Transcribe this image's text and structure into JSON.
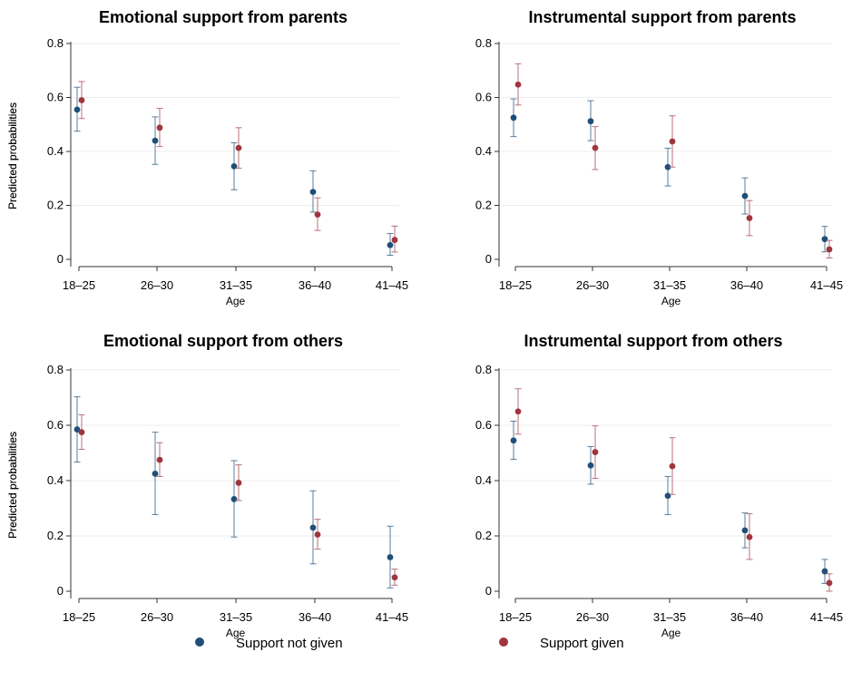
{
  "chart_data": [
    {
      "type": "scatter",
      "title": "Emotional support from parents",
      "xlabel": "Age",
      "ylabel": "Predicted probabilities",
      "categories": [
        "18–25",
        "26–30",
        "31–35",
        "36–40",
        "41–45"
      ],
      "ylim": [
        0,
        0.8
      ],
      "yticks": [
        "0",
        "0.2",
        "0.4",
        "0.6",
        "0.8"
      ],
      "grid": true,
      "series": [
        {
          "name": "Support not given",
          "values": [
            0.555,
            0.44,
            0.345,
            0.25,
            0.053
          ],
          "ci_low": [
            0.475,
            0.352,
            0.258,
            0.175,
            0.015
          ],
          "ci_high": [
            0.638,
            0.528,
            0.432,
            0.328,
            0.096
          ]
        },
        {
          "name": "Support given",
          "values": [
            0.59,
            0.488,
            0.413,
            0.166,
            0.072
          ],
          "ci_low": [
            0.522,
            0.418,
            0.338,
            0.107,
            0.027
          ],
          "ci_high": [
            0.659,
            0.56,
            0.488,
            0.228,
            0.123
          ]
        }
      ]
    },
    {
      "type": "scatter",
      "title": "Instrumental support from parents",
      "xlabel": "Age",
      "ylabel": "Predicted probabilities",
      "categories": [
        "18–25",
        "26–30",
        "31–35",
        "36–40",
        "41–45"
      ],
      "ylim": [
        0,
        0.8
      ],
      "yticks": [
        "0",
        "0.2",
        "0.4",
        "0.6",
        "0.8"
      ],
      "grid": true,
      "series": [
        {
          "name": "Support not given",
          "values": [
            0.525,
            0.512,
            0.342,
            0.235,
            0.075
          ],
          "ci_low": [
            0.455,
            0.44,
            0.272,
            0.168,
            0.028
          ],
          "ci_high": [
            0.595,
            0.588,
            0.412,
            0.302,
            0.122
          ]
        },
        {
          "name": "Support given",
          "values": [
            0.648,
            0.413,
            0.437,
            0.153,
            0.037
          ],
          "ci_low": [
            0.572,
            0.333,
            0.342,
            0.088,
            0.005
          ],
          "ci_high": [
            0.725,
            0.492,
            0.532,
            0.218,
            0.07
          ]
        }
      ]
    },
    {
      "type": "scatter",
      "title": "Emotional support from others",
      "xlabel": "Age",
      "ylabel": "Predicted probabilities",
      "categories": [
        "18–25",
        "26–30",
        "31–35",
        "36–40",
        "41–45"
      ],
      "ylim": [
        0,
        0.8
      ],
      "yticks": [
        "0",
        "0.2",
        "0.4",
        "0.6",
        "0.8"
      ],
      "grid": true,
      "series": [
        {
          "name": "Support not given",
          "values": [
            0.585,
            0.425,
            0.333,
            0.23,
            0.123
          ],
          "ci_low": [
            0.467,
            0.277,
            0.196,
            0.099,
            0.012
          ],
          "ci_high": [
            0.703,
            0.575,
            0.472,
            0.363,
            0.235
          ]
        },
        {
          "name": "Support given",
          "values": [
            0.575,
            0.475,
            0.392,
            0.205,
            0.05
          ],
          "ci_low": [
            0.513,
            0.415,
            0.328,
            0.152,
            0.022
          ],
          "ci_high": [
            0.638,
            0.537,
            0.457,
            0.26,
            0.08
          ]
        }
      ]
    },
    {
      "type": "scatter",
      "title": "Instrumental support from others",
      "xlabel": "Age",
      "ylabel": "Predicted probabilities",
      "categories": [
        "18–25",
        "26–30",
        "31–35",
        "36–40",
        "41–45"
      ],
      "ylim": [
        0,
        0.8
      ],
      "yticks": [
        "0",
        "0.2",
        "0.4",
        "0.6",
        "0.8"
      ],
      "grid": true,
      "series": [
        {
          "name": "Support not given",
          "values": [
            0.545,
            0.455,
            0.345,
            0.22,
            0.072
          ],
          "ci_low": [
            0.477,
            0.387,
            0.277,
            0.157,
            0.028
          ],
          "ci_high": [
            0.615,
            0.523,
            0.415,
            0.283,
            0.115
          ]
        },
        {
          "name": "Support given",
          "values": [
            0.65,
            0.503,
            0.452,
            0.196,
            0.03
          ],
          "ci_low": [
            0.568,
            0.408,
            0.35,
            0.115,
            0.0
          ],
          "ci_high": [
            0.732,
            0.598,
            0.555,
            0.28,
            0.063
          ]
        }
      ]
    }
  ],
  "legend": {
    "position": "bottom",
    "items": [
      {
        "label": "Support not given",
        "color": "#1f4e79"
      },
      {
        "label": "Support given",
        "color": "#a0353e"
      }
    ]
  },
  "colors": {
    "not_given_marker": "#1f4e79",
    "not_given_bar": "#5a7d9a",
    "given_marker": "#a0353e",
    "given_bar": "#b8707a"
  }
}
